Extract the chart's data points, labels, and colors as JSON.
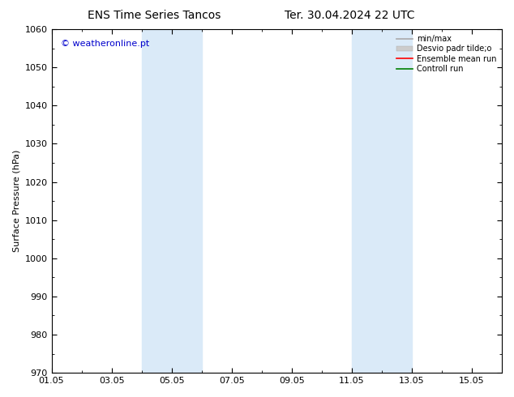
{
  "title": "ENS Time Series Tancos",
  "title2": "Ter. 30.04.2024 22 UTC",
  "ylabel": "Surface Pressure (hPa)",
  "ylim": [
    970,
    1060
  ],
  "yticks": [
    970,
    980,
    990,
    1000,
    1010,
    1020,
    1030,
    1040,
    1050,
    1060
  ],
  "xtick_labels": [
    "01.05",
    "03.05",
    "05.05",
    "07.05",
    "09.05",
    "11.05",
    "13.05",
    "15.05"
  ],
  "xtick_positions": [
    0,
    2,
    4,
    6,
    8,
    10,
    12,
    14
  ],
  "xlim": [
    0,
    15
  ],
  "shaded_regions": [
    {
      "start": 3.0,
      "end": 5.0
    },
    {
      "start": 10.0,
      "end": 12.0
    }
  ],
  "shaded_color": "#daeaf8",
  "watermark_text": "© weatheronline.pt",
  "watermark_color": "#0000cc",
  "legend_entries": [
    {
      "label": "min/max",
      "color": "#aaaaaa",
      "lw": 1.2,
      "linestyle": "-",
      "type": "line"
    },
    {
      "label": "Desvio padr tilde;o",
      "color": "#cccccc",
      "lw": 5,
      "linestyle": "-",
      "type": "patch"
    },
    {
      "label": "Ensemble mean run",
      "color": "#ff0000",
      "lw": 1.2,
      "linestyle": "-",
      "type": "line"
    },
    {
      "label": "Controll run",
      "color": "#008000",
      "lw": 1.2,
      "linestyle": "-",
      "type": "line"
    }
  ],
  "bg_color": "#ffffff",
  "border_color": "#000000",
  "title_fontsize": 10,
  "ylabel_fontsize": 8,
  "tick_labelsize": 8,
  "legend_fontsize": 7
}
